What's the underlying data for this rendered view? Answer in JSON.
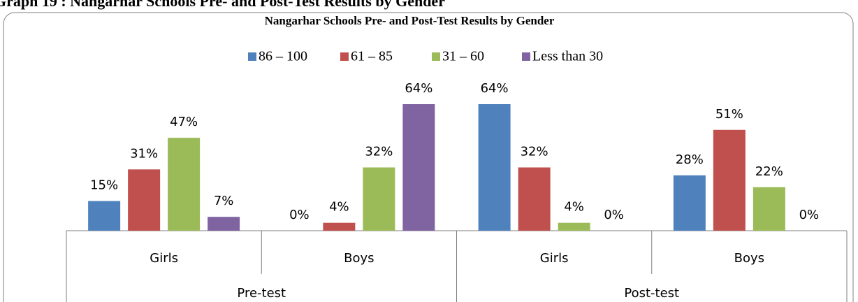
{
  "heading": "Graph 19 : Nangarhar Schools Pre- and Post-Test Results by Gender",
  "chart_data": {
    "type": "bar",
    "title": "Nangarhar Schools Pre- and Post-Test Results by Gender",
    "groups": [
      {
        "label": "Pre-test",
        "categories": [
          "Girls",
          "Boys"
        ]
      },
      {
        "label": "Post-test",
        "categories": [
          "Girls",
          "Boys"
        ]
      }
    ],
    "series": [
      {
        "name": "86 – 100",
        "color": "#4f81bd",
        "values": [
          15,
          0,
          64,
          28
        ],
        "value_labels": [
          "15%",
          "0%",
          "64%",
          "28%"
        ]
      },
      {
        "name": "61 – 85",
        "color": "#c0504d",
        "values": [
          31,
          4,
          32,
          51
        ],
        "value_labels": [
          "31%",
          "4%",
          "32%",
          "51%"
        ]
      },
      {
        "name": "31 – 60",
        "color": "#9bbb59",
        "values": [
          47,
          32,
          4,
          22
        ],
        "value_labels": [
          "47%",
          "32%",
          "4%",
          "22%"
        ]
      },
      {
        "name": "Less than 30",
        "color": "#8064a2",
        "values": [
          7,
          64,
          0,
          0
        ],
        "value_labels": [
          "7%",
          "64%",
          "0%",
          "0%"
        ]
      }
    ],
    "legend": "top"
  }
}
